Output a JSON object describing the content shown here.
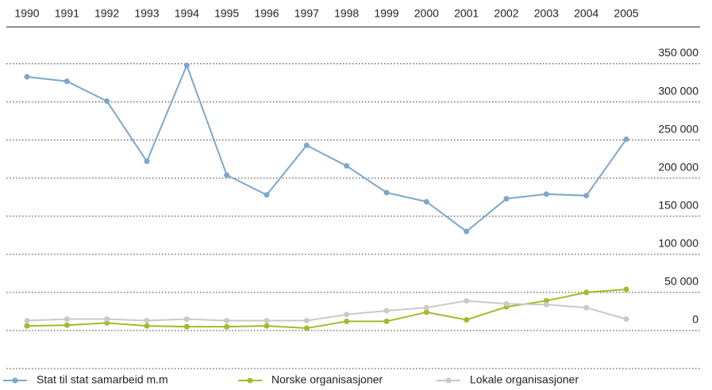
{
  "chart_data": {
    "type": "line",
    "categories": [
      "1990",
      "1991",
      "1992",
      "1993",
      "1994",
      "1995",
      "1996",
      "1997",
      "1998",
      "1999",
      "2000",
      "2001",
      "2002",
      "2003",
      "2004",
      "2005"
    ],
    "series": [
      {
        "name": "Stat til stat samarbeid m.m",
        "color": "#7ba7cc",
        "values": [
          333000,
          327000,
          301000,
          222000,
          348000,
          204000,
          178000,
          243000,
          216000,
          181000,
          169000,
          130000,
          173000,
          179000,
          177000,
          251000
        ]
      },
      {
        "name": "Norske organisasjoner",
        "color": "#a8b82a",
        "values": [
          6000,
          7000,
          10000,
          6000,
          5000,
          5000,
          6000,
          3000,
          12000,
          12000,
          24000,
          14000,
          31000,
          39000,
          50000,
          54000
        ]
      },
      {
        "name": "Lokale organisasjoner",
        "color": "#cac9c4",
        "values": [
          13000,
          15000,
          15000,
          13000,
          15000,
          13000,
          13000,
          13000,
          21000,
          26000,
          30000,
          39000,
          35000,
          34000,
          30000,
          15000
        ]
      }
    ],
    "ylim": [
      -50000,
      350000
    ],
    "yticks": [
      {
        "value": 0,
        "label": "0"
      },
      {
        "value": 50000,
        "label": "50 000"
      },
      {
        "value": 100000,
        "label": "100 000"
      },
      {
        "value": 150000,
        "label": "150 000"
      },
      {
        "value": 200000,
        "label": "200 000"
      },
      {
        "value": 250000,
        "label": "250 000"
      },
      {
        "value": 300000,
        "label": "300 000"
      },
      {
        "value": 350000,
        "label": "350 000"
      }
    ],
    "grid": true,
    "legend": "bottom"
  }
}
